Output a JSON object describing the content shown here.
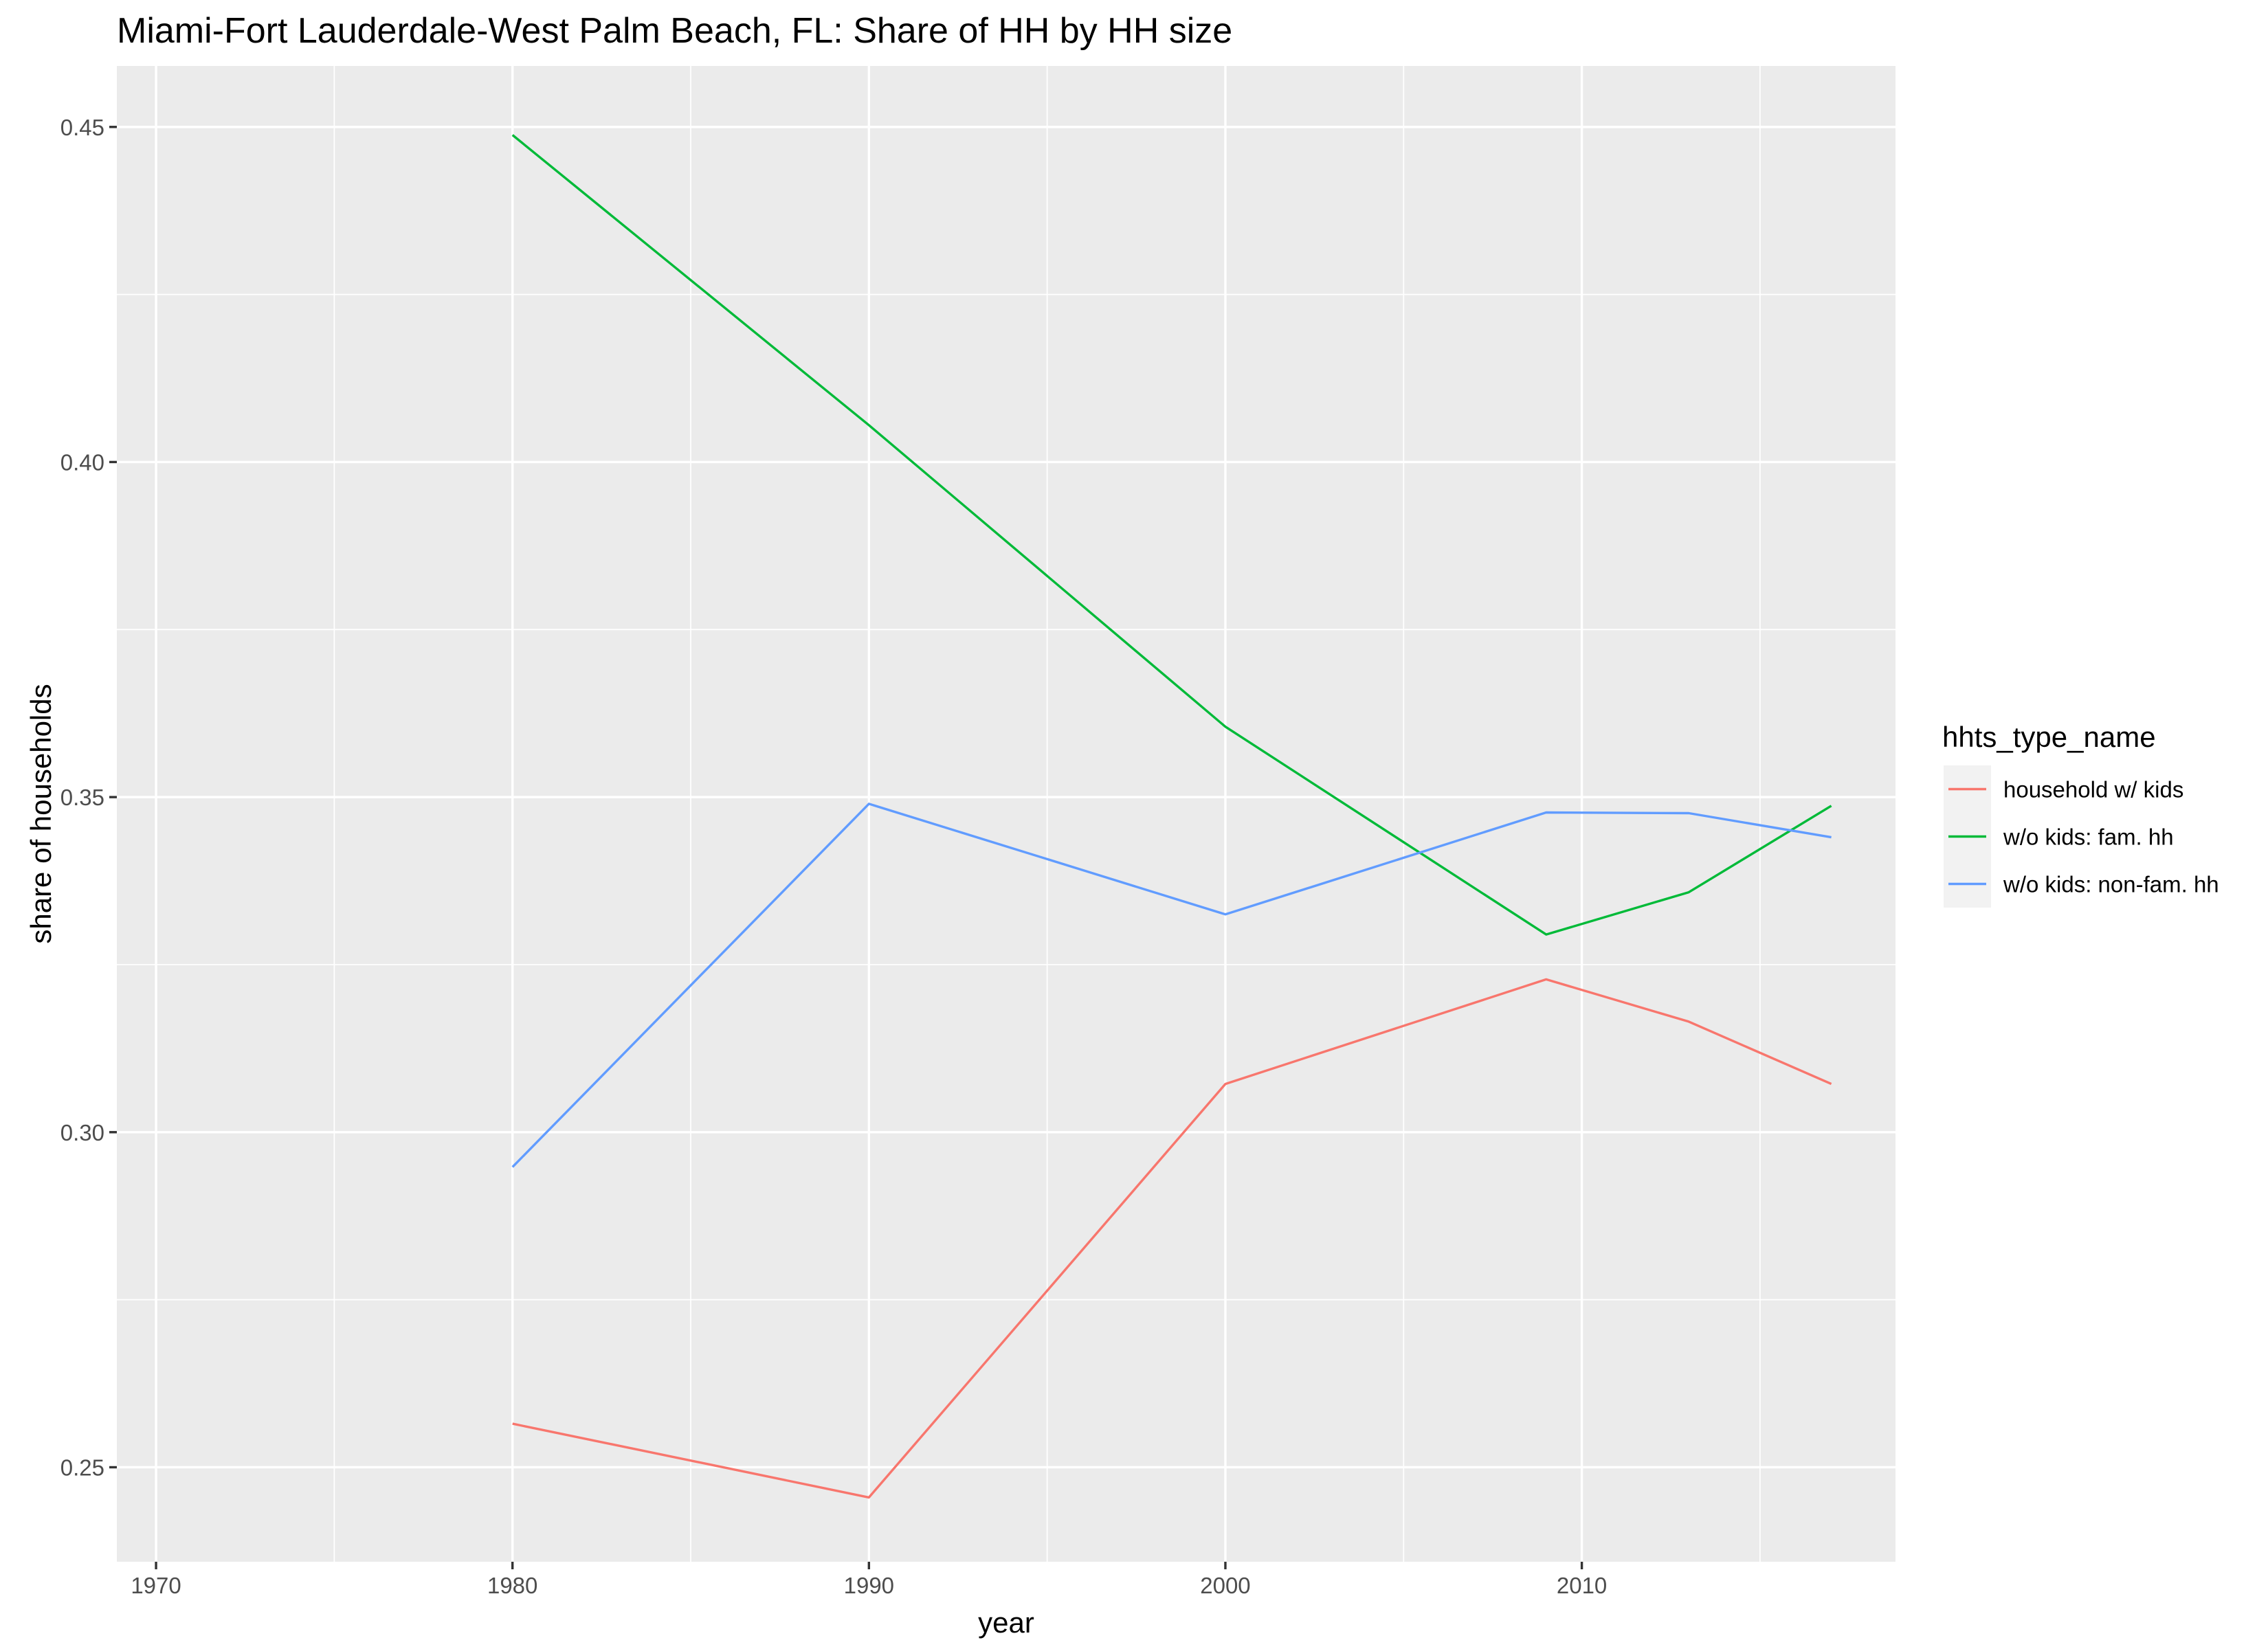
{
  "chart_data": {
    "type": "line",
    "title": "Miami-Fort Lauderdale-West Palm Beach, FL: Share of HH by HH size",
    "xlabel": "year",
    "ylabel": "share of households",
    "xlim": [
      1968.9,
      2018.8
    ],
    "ylim": [
      0.2359,
      0.4591
    ],
    "x_ticks": [
      1970,
      1980,
      1990,
      2000,
      2010
    ],
    "x_tick_labels": [
      "1970",
      "1980",
      "1990",
      "2000",
      "2010"
    ],
    "y_ticks": [
      0.25,
      0.3,
      0.35,
      0.4,
      0.45
    ],
    "y_tick_labels": [
      "0.25",
      "0.30",
      "0.35",
      "0.40",
      "0.45"
    ],
    "grid": true,
    "legend": {
      "title": "hhts_type_name",
      "position": "right"
    },
    "x": [
      1980,
      1990,
      2000,
      2009,
      2013,
      2017
    ],
    "series": [
      {
        "name": "household w/ kids",
        "color": "#F8766D",
        "values": [
          0.2565,
          0.2455,
          0.3072,
          0.3228,
          0.3165,
          0.3072
        ]
      },
      {
        "name": "w/o kids: fam. hh",
        "color": "#00BA38",
        "values": [
          0.4488,
          0.4055,
          0.3605,
          0.3295,
          0.3358,
          0.3487
        ]
      },
      {
        "name": "w/o kids: non-fam. hh",
        "color": "#619CFF",
        "values": [
          0.2948,
          0.349,
          0.3325,
          0.3477,
          0.3476,
          0.344
        ]
      }
    ]
  }
}
